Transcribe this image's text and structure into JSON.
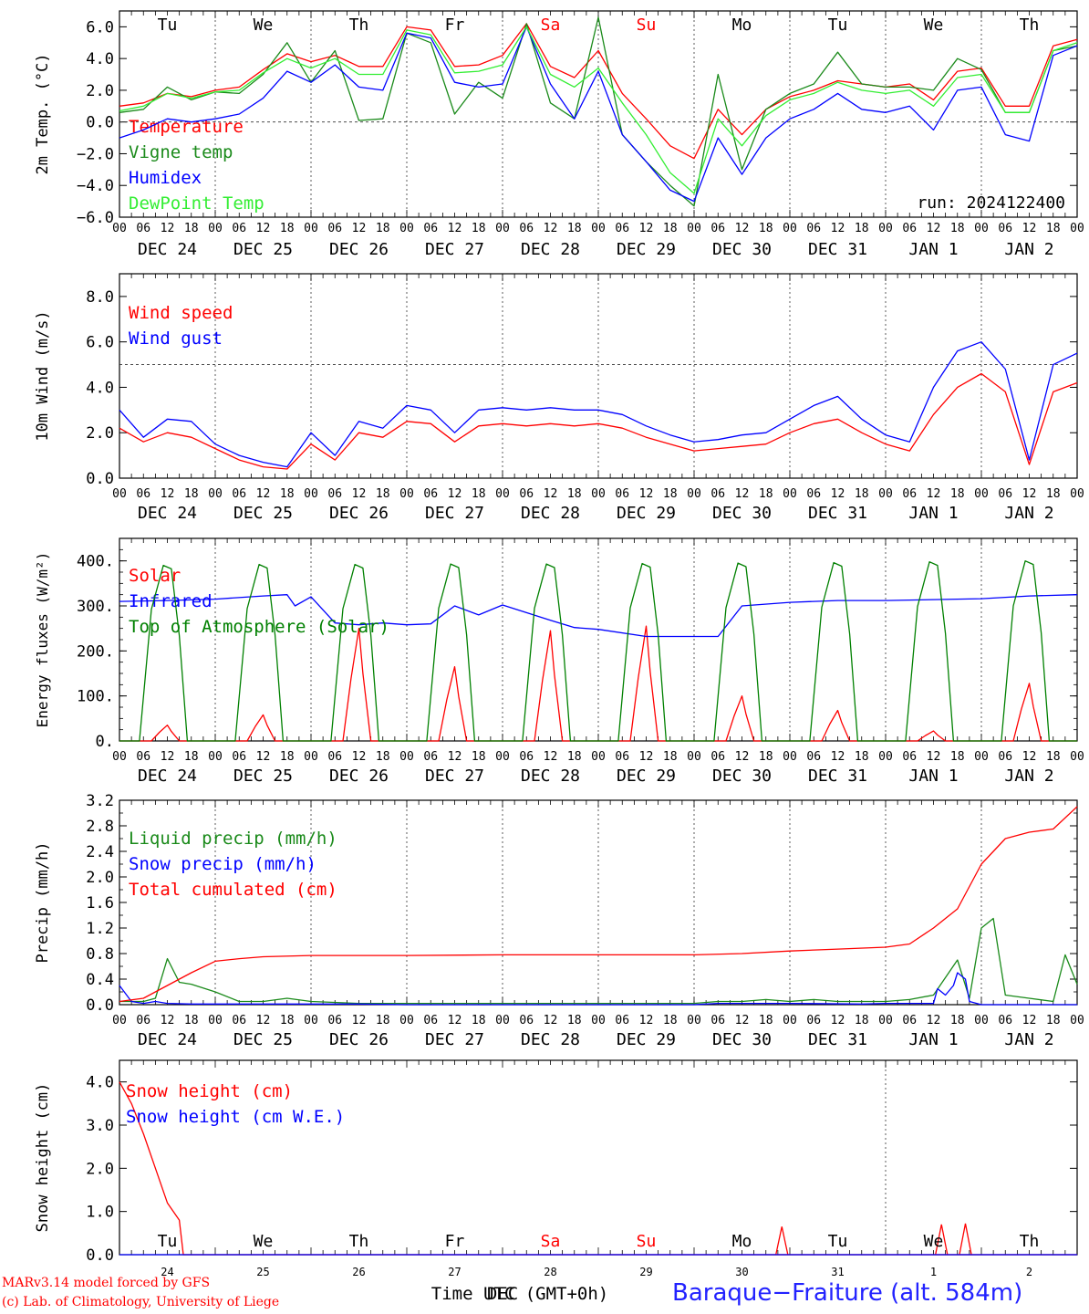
{
  "colors": {
    "red": "#ff0000",
    "green": "#1a8a1a",
    "blue": "#0000ff",
    "lightgreen": "#33ee33",
    "darkgreen": "#008000",
    "axis": "#000000"
  },
  "time": {
    "days": 10,
    "hour_ticks": [
      "00",
      "06",
      "12",
      "18",
      "00",
      "06",
      "12",
      "18",
      "00",
      "06",
      "12",
      "18",
      "00",
      "06",
      "12",
      "18",
      "00",
      "06",
      "12",
      "18",
      "00",
      "06",
      "12",
      "18",
      "00",
      "06",
      "12",
      "18",
      "00",
      "06",
      "12",
      "18",
      "00",
      "06",
      "12",
      "18",
      "00",
      "06",
      "12",
      "18",
      "00"
    ],
    "date_labels": [
      "DEC 24",
      "DEC 25",
      "DEC 26",
      "DEC 27",
      "DEC 28",
      "DEC 29",
      "DEC 30",
      "DEC 31",
      "JAN  1",
      "JAN  2"
    ],
    "weekdays": [
      "Tu",
      "We",
      "Th",
      "Fr",
      "Sa",
      "Su",
      "Mo",
      "Tu",
      "We",
      "Th"
    ],
    "weekend_indices": [
      4,
      5
    ],
    "bottom_day_numbers": [
      "24",
      "25",
      "26",
      "27",
      "28",
      "29",
      "30",
      "31",
      "1",
      "2"
    ],
    "xlabel": "Time UTC (GMT+0h)",
    "xlabel_overlay": "DEC"
  },
  "chart_data": [
    {
      "type": "line",
      "id": "temp",
      "ylabel": "2m Temp. (°C)",
      "ylim": [
        -6,
        7
      ],
      "yticks": [
        -6,
        -4,
        -2,
        0,
        2,
        4,
        6
      ],
      "ytick_labels": [
        "−6.0",
        "−4.0",
        "−2.0",
        "0.0",
        "2.0",
        "4.0",
        "6.0"
      ],
      "zero_line": 0,
      "run_label": "run: 2024122400",
      "x_unit": "hours from DEC 24 00 UTC",
      "series": [
        {
          "name": "Temperature",
          "color": "red",
          "x": [
            0,
            6,
            12,
            18,
            24,
            30,
            36,
            42,
            48,
            54,
            60,
            66,
            72,
            78,
            84,
            90,
            96,
            102,
            108,
            114,
            120,
            126,
            132,
            138,
            144,
            150,
            156,
            162,
            168,
            174,
            180,
            186,
            192,
            198,
            204,
            210,
            216,
            222,
            228,
            234,
            240
          ],
          "y": [
            1.0,
            1.2,
            1.8,
            1.6,
            2.0,
            2.2,
            3.3,
            4.3,
            3.8,
            4.2,
            3.5,
            3.5,
            6.0,
            5.8,
            3.5,
            3.6,
            4.2,
            6.2,
            3.5,
            2.8,
            4.5,
            1.8,
            0.2,
            -1.5,
            -2.3,
            0.8,
            -0.8,
            0.8,
            1.6,
            2.0,
            2.6,
            2.4,
            2.2,
            2.4,
            1.4,
            3.2,
            3.4,
            1.0,
            1.0,
            4.8,
            5.2
          ]
        },
        {
          "name": "Vigne temp",
          "color": "green",
          "x": [
            0,
            6,
            12,
            18,
            24,
            30,
            36,
            42,
            48,
            54,
            60,
            66,
            72,
            78,
            84,
            90,
            96,
            102,
            108,
            114,
            120,
            126,
            132,
            138,
            144,
            150,
            156,
            162,
            168,
            174,
            180,
            186,
            192,
            198,
            204,
            210,
            216,
            222,
            228,
            234,
            240
          ],
          "y": [
            0.6,
            0.8,
            2.2,
            1.4,
            1.9,
            1.8,
            3.0,
            5.0,
            2.5,
            4.5,
            0.1,
            0.2,
            5.6,
            5.0,
            0.5,
            2.5,
            1.5,
            6.2,
            1.2,
            0.2,
            6.6,
            -0.8,
            -2.5,
            -4.0,
            -5.3,
            3.0,
            -3.0,
            0.8,
            1.8,
            2.4,
            4.4,
            2.4,
            2.2,
            2.2,
            2.0,
            4.0,
            3.3,
            0.6,
            0.6,
            4.5,
            4.8
          ]
        },
        {
          "name": "Humidex",
          "color": "blue",
          "x": [
            0,
            6,
            12,
            18,
            24,
            30,
            36,
            42,
            48,
            54,
            60,
            66,
            72,
            78,
            84,
            90,
            96,
            102,
            108,
            114,
            120,
            126,
            132,
            138,
            144,
            150,
            156,
            162,
            168,
            174,
            180,
            186,
            192,
            198,
            204,
            210,
            216,
            222,
            228,
            234,
            240
          ],
          "y": [
            -1.0,
            -0.5,
            0.2,
            0.0,
            0.2,
            0.5,
            1.5,
            3.2,
            2.5,
            3.6,
            2.2,
            2.0,
            5.6,
            5.3,
            2.5,
            2.2,
            2.4,
            6.0,
            2.4,
            0.2,
            3.2,
            -0.8,
            -2.5,
            -4.3,
            -5.0,
            -1.0,
            -3.3,
            -1.0,
            0.2,
            0.8,
            1.8,
            0.8,
            0.6,
            1.0,
            -0.5,
            2.0,
            2.2,
            -0.8,
            -1.2,
            4.2,
            4.8
          ]
        },
        {
          "name": "DewPoint Temp",
          "color": "lightgreen",
          "x": [
            0,
            6,
            12,
            18,
            24,
            30,
            36,
            42,
            48,
            54,
            60,
            66,
            72,
            78,
            84,
            90,
            96,
            102,
            108,
            114,
            120,
            126,
            132,
            138,
            144,
            150,
            156,
            162,
            168,
            174,
            180,
            186,
            192,
            198,
            204,
            210,
            216,
            222,
            228,
            234,
            240
          ],
          "y": [
            0.7,
            1.0,
            1.8,
            1.5,
            1.9,
            2.0,
            3.1,
            4.0,
            3.4,
            4.0,
            3.0,
            3.0,
            5.8,
            5.5,
            3.1,
            3.2,
            3.6,
            6.0,
            3.0,
            2.2,
            3.4,
            1.2,
            -0.8,
            -3.2,
            -4.5,
            0.2,
            -1.5,
            0.4,
            1.4,
            1.8,
            2.5,
            2.0,
            1.8,
            2.0,
            1.0,
            2.8,
            3.0,
            0.6,
            0.6,
            4.5,
            5.0
          ]
        }
      ],
      "weekend_labels_colored": true
    },
    {
      "type": "line",
      "id": "wind",
      "ylabel": "10m Wind (m/s)",
      "ylim": [
        0,
        9
      ],
      "yticks": [
        0,
        2,
        4,
        6,
        8
      ],
      "ytick_labels": [
        "0.0",
        "2.0",
        "4.0",
        "6.0",
        "8.0"
      ],
      "ref_line": 5,
      "series": [
        {
          "name": "Wind speed",
          "color": "red",
          "x": [
            0,
            6,
            12,
            18,
            24,
            30,
            36,
            42,
            48,
            54,
            60,
            66,
            72,
            78,
            84,
            90,
            96,
            102,
            108,
            114,
            120,
            126,
            132,
            138,
            144,
            150,
            156,
            162,
            168,
            174,
            180,
            186,
            192,
            198,
            204,
            210,
            216,
            222,
            228,
            234,
            240
          ],
          "y": [
            2.2,
            1.6,
            2.0,
            1.8,
            1.3,
            0.8,
            0.5,
            0.4,
            1.5,
            0.8,
            2.0,
            1.8,
            2.5,
            2.4,
            1.6,
            2.3,
            2.4,
            2.3,
            2.4,
            2.3,
            2.4,
            2.2,
            1.8,
            1.5,
            1.2,
            1.3,
            1.4,
            1.5,
            2.0,
            2.4,
            2.6,
            2.0,
            1.5,
            1.2,
            2.8,
            4.0,
            4.6,
            3.8,
            0.6,
            3.8,
            4.2
          ]
        },
        {
          "name": "Wind gust",
          "color": "blue",
          "x": [
            0,
            6,
            12,
            18,
            24,
            30,
            36,
            42,
            48,
            54,
            60,
            66,
            72,
            78,
            84,
            90,
            96,
            102,
            108,
            114,
            120,
            126,
            132,
            138,
            144,
            150,
            156,
            162,
            168,
            174,
            180,
            186,
            192,
            198,
            204,
            210,
            216,
            222,
            228,
            234,
            240
          ],
          "y": [
            3.0,
            1.8,
            2.6,
            2.5,
            1.5,
            1.0,
            0.7,
            0.5,
            2.0,
            1.0,
            2.5,
            2.2,
            3.2,
            3.0,
            2.0,
            3.0,
            3.1,
            3.0,
            3.1,
            3.0,
            3.0,
            2.8,
            2.3,
            1.9,
            1.6,
            1.7,
            1.9,
            2.0,
            2.6,
            3.2,
            3.6,
            2.6,
            1.9,
            1.6,
            4.0,
            5.6,
            6.0,
            4.8,
            0.8,
            5.0,
            5.5
          ]
        }
      ]
    },
    {
      "type": "line",
      "id": "energy",
      "ylabel": "Energy fluxes (W/m²)",
      "ylim": [
        0,
        450
      ],
      "yticks": [
        0,
        100,
        200,
        300,
        400
      ],
      "ytick_labels": [
        "0.",
        "100.",
        "200.",
        "300.",
        "400."
      ],
      "series": [
        {
          "name": "Solar",
          "color": "red",
          "peaks": [
            35,
            58,
            250,
            165,
            245,
            255,
            100,
            68,
            22,
            128
          ]
        },
        {
          "name": "Infrared",
          "color": "blue",
          "x": [
            0,
            12,
            24,
            36,
            42,
            44,
            48,
            54,
            60,
            66,
            72,
            78,
            84,
            90,
            96,
            108,
            114,
            120,
            132,
            144,
            150,
            156,
            168,
            180,
            192,
            204,
            216,
            228,
            240
          ],
          "y": [
            310,
            312,
            315,
            322,
            325,
            300,
            320,
            262,
            258,
            262,
            258,
            260,
            300,
            280,
            302,
            268,
            252,
            248,
            232,
            232,
            232,
            300,
            308,
            312,
            312,
            314,
            316,
            322,
            325
          ]
        },
        {
          "name": "Top of Atmosphere (Solar)",
          "color": "darkgreen",
          "peaks": [
            390,
            392,
            392,
            393,
            393,
            394,
            395,
            396,
            398,
            400
          ]
        }
      ],
      "diurnal": {
        "rise_hour": 7,
        "set_hour": 16
      }
    },
    {
      "type": "line",
      "id": "precip",
      "ylabel": "Precip (mm/h)",
      "ylim": [
        0,
        3.2
      ],
      "yticks": [
        0,
        0.4,
        0.8,
        1.2,
        1.6,
        2.0,
        2.4,
        2.8,
        3.2
      ],
      "ytick_labels": [
        "0.0",
        "0.4",
        "0.8",
        "1.2",
        "1.6",
        "2.0",
        "2.4",
        "2.8",
        "3.2"
      ],
      "series": [
        {
          "name": "Liquid precip (mm/h)",
          "color": "green",
          "x": [
            0,
            6,
            9,
            12,
            15,
            18,
            24,
            30,
            36,
            42,
            48,
            60,
            72,
            96,
            120,
            144,
            150,
            156,
            162,
            168,
            174,
            180,
            186,
            192,
            198,
            204,
            210,
            213,
            216,
            219,
            222,
            228,
            234,
            237,
            240
          ],
          "y": [
            0.05,
            0.05,
            0.1,
            0.72,
            0.35,
            0.32,
            0.2,
            0.05,
            0.05,
            0.1,
            0.05,
            0.02,
            0.02,
            0.02,
            0.02,
            0.02,
            0.05,
            0.05,
            0.08,
            0.05,
            0.08,
            0.05,
            0.05,
            0.05,
            0.08,
            0.15,
            0.7,
            0.1,
            1.2,
            1.35,
            0.15,
            0.1,
            0.05,
            0.78,
            0.32
          ]
        },
        {
          "name": "Snow precip (mm/h)",
          "color": "blue",
          "x": [
            0,
            3,
            6,
            9,
            12,
            18,
            24,
            36,
            48,
            60,
            72,
            96,
            120,
            144,
            150,
            168,
            186,
            192,
            198,
            204,
            205,
            207,
            209,
            210,
            212,
            213,
            216,
            219,
            222,
            228,
            240
          ],
          "y": [
            0.3,
            0.05,
            0.02,
            0.05,
            0.02,
            0.01,
            0.01,
            0.01,
            0.01,
            0.01,
            0.0,
            0.0,
            0.0,
            0.0,
            0.02,
            0.02,
            0.01,
            0.02,
            0.02,
            0.02,
            0.25,
            0.15,
            0.3,
            0.5,
            0.4,
            0.05,
            0.0,
            0.0,
            0.0,
            0.0,
            0.0
          ]
        },
        {
          "name": "Total cumulated (cm)",
          "color": "red",
          "x": [
            0,
            6,
            12,
            18,
            24,
            30,
            36,
            48,
            72,
            96,
            120,
            144,
            156,
            168,
            180,
            192,
            198,
            204,
            210,
            216,
            222,
            228,
            234,
            240
          ],
          "y": [
            0.05,
            0.1,
            0.3,
            0.5,
            0.68,
            0.72,
            0.75,
            0.77,
            0.77,
            0.78,
            0.78,
            0.78,
            0.8,
            0.84,
            0.87,
            0.9,
            0.95,
            1.2,
            1.5,
            2.2,
            2.6,
            2.7,
            2.75,
            3.1
          ]
        }
      ]
    },
    {
      "type": "line",
      "id": "snow",
      "ylabel": "Snow height (cm)",
      "ylim": [
        0,
        4.5
      ],
      "yticks": [
        0,
        1,
        2,
        3,
        4
      ],
      "ytick_labels": [
        "0.0",
        "1.0",
        "2.0",
        "3.0",
        "4.0"
      ],
      "series": [
        {
          "name": "Snow height (cm)",
          "color": "red",
          "x": [
            0,
            3,
            6,
            9,
            12,
            15,
            16,
            17,
            240
          ],
          "y": [
            4.0,
            3.5,
            2.8,
            2.0,
            1.2,
            0.8,
            0.0,
            0.0,
            0.0
          ],
          "spikes": [
            [
              166,
              0.65
            ],
            [
              206,
              0.7
            ],
            [
              212,
              0.72
            ]
          ]
        },
        {
          "name": "Snow height (cm W.E.)",
          "color": "blue",
          "x": [
            0,
            240
          ],
          "y": [
            0,
            0
          ]
        }
      ]
    }
  ],
  "footer": {
    "model_line1": "MARv3.14 model forced by GFS",
    "model_line2": "(c) Lab. of Climatology, University of Liege",
    "station": "Baraque−Fraiture (alt. 584m)"
  }
}
